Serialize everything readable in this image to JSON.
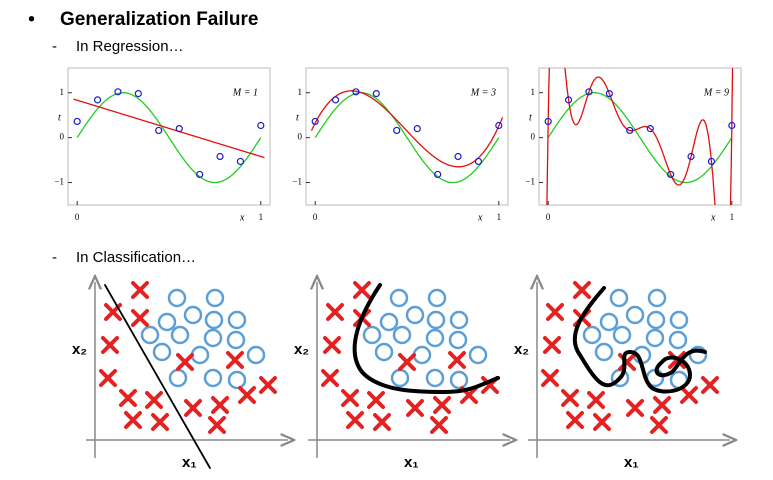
{
  "bullet": "•",
  "title": "Generalization Failure",
  "sections": [
    {
      "dash": "-",
      "heading": "In Regression…"
    },
    {
      "dash": "-",
      "heading": "In Classification…"
    }
  ],
  "regression": {
    "x": [
      0,
      0.111,
      0.222,
      0.333,
      0.444,
      0.556,
      0.667,
      0.778,
      0.889,
      1
    ],
    "t": [
      0.36,
      0.84,
      1.02,
      0.98,
      0.16,
      0.2,
      -0.82,
      -0.42,
      -0.53,
      0.27
    ],
    "xlim": [
      -0.05,
      1.05
    ],
    "ylim": [
      -1.5,
      1.55
    ],
    "xticks": [
      0,
      1
    ],
    "yticks": [
      {
        "value": -1,
        "label": "−1"
      },
      0,
      1
    ],
    "x_label": "x",
    "y_label": "t",
    "point_color": "#1a1ad0",
    "true_curve_color": "#22cc22",
    "fit_color": "#e01010",
    "panels": [
      {
        "label": "M = 1",
        "degree": 1
      },
      {
        "label": "M = 3",
        "degree": 3
      },
      {
        "label": "M = 9",
        "degree": 9
      }
    ]
  },
  "classification": {
    "x_label": "x₁",
    "y_label": "x₂"
  }
}
